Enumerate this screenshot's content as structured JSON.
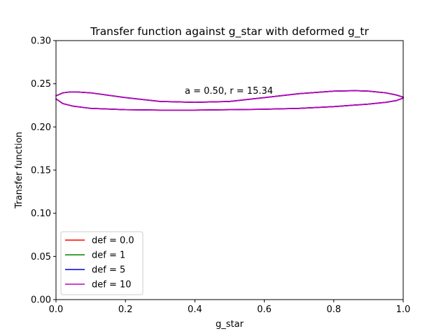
{
  "chart_data": {
    "type": "line",
    "title": "Transfer function against g_star with deformed g_tr",
    "xlabel": "g_star",
    "ylabel": "Transfer function",
    "xlim": [
      0.0,
      1.0
    ],
    "ylim": [
      0.0,
      0.3
    ],
    "xticks": [
      "0.0",
      "0.2",
      "0.4",
      "0.6",
      "0.8",
      "1.0"
    ],
    "yticks": [
      "0.00",
      "0.05",
      "0.10",
      "0.15",
      "0.20",
      "0.25",
      "0.30"
    ],
    "grid": false,
    "legend_position": "lower-left",
    "annotation": "a = 0.50, r = 15.34",
    "series": [
      {
        "name": "def = 0.0",
        "color": "#ff0000",
        "x": [
          0.0,
          0.02,
          0.04,
          0.06,
          0.1,
          0.2,
          0.3,
          0.4,
          0.5,
          0.6,
          0.7,
          0.8,
          0.86,
          0.9,
          0.95,
          0.98,
          1.0,
          1.0,
          0.98,
          0.95,
          0.9,
          0.8,
          0.7,
          0.6,
          0.5,
          0.4,
          0.3,
          0.2,
          0.1,
          0.05,
          0.02,
          0.0
        ],
        "y": [
          0.236,
          0.2395,
          0.2405,
          0.2405,
          0.2395,
          0.234,
          0.2295,
          0.2285,
          0.2295,
          0.234,
          0.2385,
          0.2415,
          0.242,
          0.2415,
          0.2395,
          0.237,
          0.2345,
          0.2335,
          0.2305,
          0.2285,
          0.2265,
          0.2235,
          0.2215,
          0.2205,
          0.22,
          0.2195,
          0.2195,
          0.22,
          0.2215,
          0.224,
          0.227,
          0.2325
        ]
      },
      {
        "name": "def = 1",
        "color": "#008000",
        "x": [
          0.0,
          0.02,
          0.04,
          0.06,
          0.1,
          0.2,
          0.3,
          0.4,
          0.5,
          0.6,
          0.7,
          0.8,
          0.86,
          0.9,
          0.95,
          0.98,
          1.0,
          1.0,
          0.98,
          0.95,
          0.9,
          0.8,
          0.7,
          0.6,
          0.5,
          0.4,
          0.3,
          0.2,
          0.1,
          0.05,
          0.02,
          0.0
        ],
        "y": [
          0.236,
          0.2395,
          0.2405,
          0.2405,
          0.2395,
          0.234,
          0.2295,
          0.2285,
          0.2295,
          0.234,
          0.2385,
          0.2415,
          0.242,
          0.2415,
          0.2395,
          0.237,
          0.2345,
          0.2335,
          0.2305,
          0.2285,
          0.2265,
          0.2235,
          0.2215,
          0.2205,
          0.22,
          0.2195,
          0.2195,
          0.22,
          0.2215,
          0.224,
          0.227,
          0.2325
        ]
      },
      {
        "name": "def = 5",
        "color": "#0000cc",
        "x": [
          0.0,
          0.02,
          0.04,
          0.06,
          0.1,
          0.2,
          0.3,
          0.4,
          0.5,
          0.6,
          0.7,
          0.8,
          0.86,
          0.9,
          0.95,
          0.98,
          1.0,
          1.0,
          0.98,
          0.95,
          0.9,
          0.8,
          0.7,
          0.6,
          0.5,
          0.4,
          0.3,
          0.2,
          0.1,
          0.05,
          0.02,
          0.0
        ],
        "y": [
          0.236,
          0.2395,
          0.2405,
          0.2405,
          0.2395,
          0.234,
          0.2295,
          0.2285,
          0.2295,
          0.234,
          0.2385,
          0.2415,
          0.242,
          0.2415,
          0.2395,
          0.237,
          0.2345,
          0.2335,
          0.2305,
          0.2285,
          0.2265,
          0.2235,
          0.2215,
          0.2205,
          0.22,
          0.2195,
          0.2195,
          0.22,
          0.2215,
          0.224,
          0.227,
          0.2325
        ]
      },
      {
        "name": "def = 10",
        "color": "#bf00bf",
        "x": [
          0.0,
          0.02,
          0.04,
          0.06,
          0.1,
          0.2,
          0.3,
          0.4,
          0.5,
          0.6,
          0.7,
          0.8,
          0.86,
          0.9,
          0.95,
          0.98,
          1.0,
          1.0,
          0.98,
          0.95,
          0.9,
          0.8,
          0.7,
          0.6,
          0.5,
          0.4,
          0.3,
          0.2,
          0.1,
          0.05,
          0.02,
          0.0
        ],
        "y": [
          0.236,
          0.2395,
          0.2405,
          0.2405,
          0.2395,
          0.234,
          0.2295,
          0.2285,
          0.2295,
          0.234,
          0.2385,
          0.2415,
          0.242,
          0.2415,
          0.2395,
          0.237,
          0.2345,
          0.2335,
          0.2305,
          0.2285,
          0.2265,
          0.2235,
          0.2215,
          0.2205,
          0.22,
          0.2195,
          0.2195,
          0.22,
          0.2215,
          0.224,
          0.227,
          0.2325
        ]
      }
    ]
  }
}
